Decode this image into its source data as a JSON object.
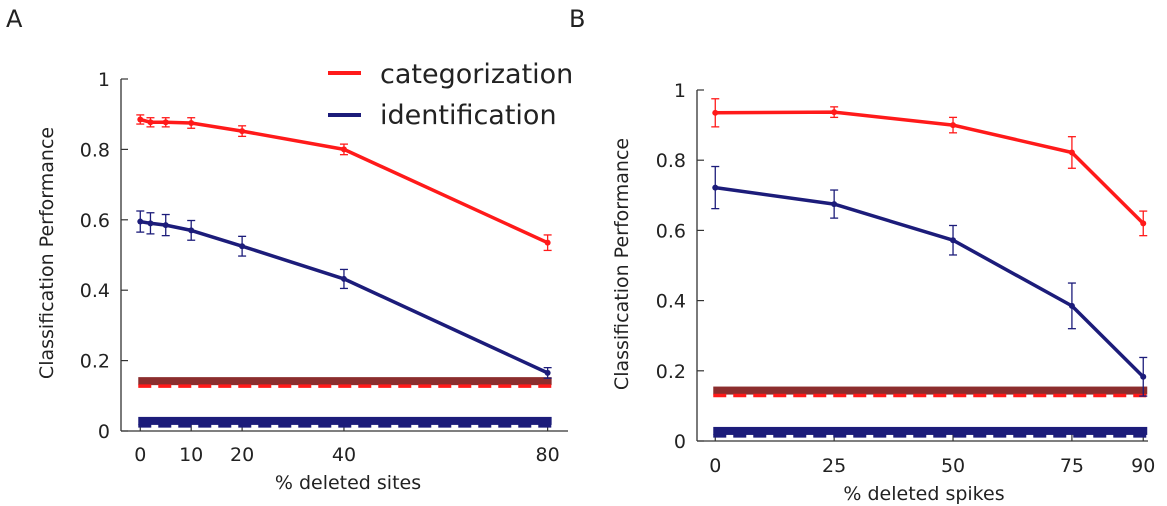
{
  "panels": [
    {
      "letter": "A"
    },
    {
      "letter": "B"
    }
  ],
  "legend": [
    {
      "label": "categorization",
      "color": "#ff1a1a"
    },
    {
      "label": "identification",
      "color": "#1c1c7a"
    }
  ],
  "colors": {
    "categorization": "#ff1a1a",
    "identification": "#1c1c7a",
    "chance_categorization": "#8b2d2d",
    "chance_identification": "#1c1c7a"
  },
  "chart_data": [
    {
      "type": "line",
      "panel": "A",
      "title": "",
      "xlabel": "% deleted sites",
      "ylabel": "Classification Performance",
      "xlim": [
        -3,
        84
      ],
      "ylim": [
        0,
        1
      ],
      "x_ticks": [
        0,
        10,
        20,
        40,
        80
      ],
      "x_tick_labels": [
        "0",
        "10",
        "20",
        "40",
        "80"
      ],
      "y_ticks": [
        0,
        0.2,
        0.4,
        0.6,
        0.8,
        1
      ],
      "y_tick_labels": [
        "0",
        "0.2",
        "0.4",
        "0.6",
        "0.8",
        "1"
      ],
      "x": [
        0,
        2,
        5,
        10,
        20,
        40,
        80
      ],
      "series": [
        {
          "name": "categorization",
          "values": [
            0.885,
            0.877,
            0.877,
            0.875,
            0.852,
            0.8,
            0.535
          ],
          "errors": [
            0.013,
            0.013,
            0.013,
            0.015,
            0.015,
            0.015,
            0.022
          ]
        },
        {
          "name": "identification",
          "values": [
            0.595,
            0.59,
            0.585,
            0.57,
            0.525,
            0.432,
            0.165
          ],
          "errors": [
            0.03,
            0.03,
            0.03,
            0.028,
            0.028,
            0.027,
            0.015
          ]
        }
      ],
      "chance_levels": [
        {
          "series": "categorization",
          "value": 0.136
        },
        {
          "series": "identification",
          "value": 0.023
        }
      ],
      "grid": false,
      "legend_position": "top-right"
    },
    {
      "type": "line",
      "panel": "B",
      "title": "",
      "xlabel": "% deleted spikes",
      "ylabel": "Classification Performance",
      "xlim": [
        -3,
        91
      ],
      "ylim": [
        0,
        1
      ],
      "x_ticks": [
        0,
        25,
        50,
        75,
        90
      ],
      "x_tick_labels": [
        "0",
        "25",
        "50",
        "75",
        "90"
      ],
      "y_ticks": [
        0,
        0.2,
        0.4,
        0.6,
        0.8,
        1
      ],
      "y_tick_labels": [
        "0",
        "0.2",
        "0.4",
        "0.6",
        "0.8",
        "1"
      ],
      "x": [
        0,
        25,
        50,
        75,
        90
      ],
      "series": [
        {
          "name": "categorization",
          "values": [
            0.935,
            0.937,
            0.9,
            0.822,
            0.62
          ],
          "errors": [
            0.04,
            0.015,
            0.022,
            0.045,
            0.035
          ]
        },
        {
          "name": "identification",
          "values": [
            0.722,
            0.675,
            0.572,
            0.385,
            0.183
          ],
          "errors": [
            0.06,
            0.04,
            0.042,
            0.065,
            0.055
          ]
        }
      ],
      "chance_levels": [
        {
          "series": "categorization",
          "value": 0.138
        },
        {
          "series": "identification",
          "value": 0.023
        }
      ],
      "grid": false,
      "legend_position": "none"
    }
  ]
}
